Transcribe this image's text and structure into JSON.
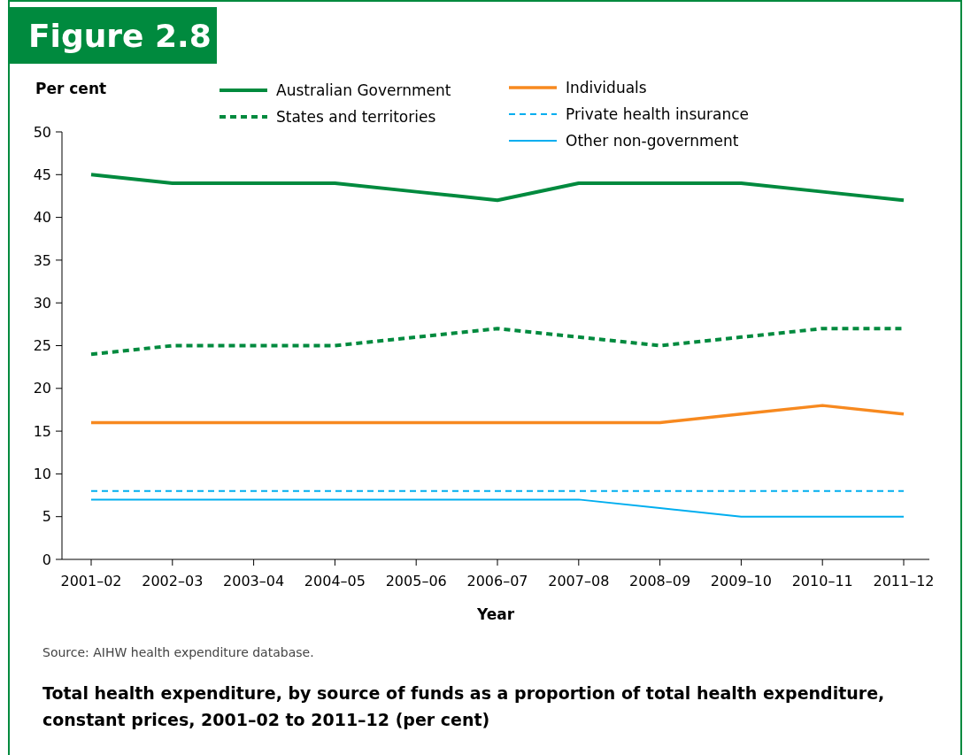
{
  "chart_data": {
    "type": "line",
    "title": "Figure 2.8",
    "subtitle": "Total health expenditure, by source of funds as a proportion of total health expenditure, constant prices, 2001–02 to 2011–12 (per cent)",
    "xlabel": "Year",
    "ylabel": "Per cent",
    "annotations": [
      "Source: AIHW health expenditure database."
    ],
    "categories": [
      "2001–02",
      "2002–03",
      "2003–04",
      "2004–05",
      "2005–06",
      "2006–07",
      "2007–08",
      "2008–09",
      "2009–10",
      "2010–11",
      "2011–12"
    ],
    "series": [
      {
        "name": "Australian Government",
        "color": "#008a3e",
        "line_style": "solid",
        "values": [
          45,
          44,
          44,
          44,
          43,
          42,
          44,
          44,
          44,
          43,
          42
        ]
      },
      {
        "name": "States and territories",
        "color": "#008a3e",
        "line_style": "dashed",
        "values": [
          24,
          25,
          25,
          25,
          26,
          27,
          26,
          25,
          26,
          27,
          27
        ]
      },
      {
        "name": "Individuals",
        "color": "#f7891f",
        "line_style": "solid",
        "values": [
          16,
          16,
          16,
          16,
          16,
          16,
          16,
          16,
          17,
          18,
          17
        ]
      },
      {
        "name": "Private health insurance",
        "color": "#00aeef",
        "line_style": "dashed",
        "values": [
          8,
          8,
          8,
          8,
          8,
          8,
          8,
          8,
          8,
          8,
          8
        ]
      },
      {
        "name": "Other non-government",
        "color": "#00aeef",
        "line_style": "solid",
        "values": [
          7,
          7,
          7,
          7,
          7,
          7,
          7,
          6,
          5,
          5,
          5
        ]
      }
    ],
    "ylim": [
      0,
      50
    ],
    "yticks": [
      0,
      5,
      10,
      15,
      20,
      25,
      30,
      35,
      40,
      45,
      50
    ],
    "grid": false,
    "legend": "top",
    "marker": "none"
  }
}
